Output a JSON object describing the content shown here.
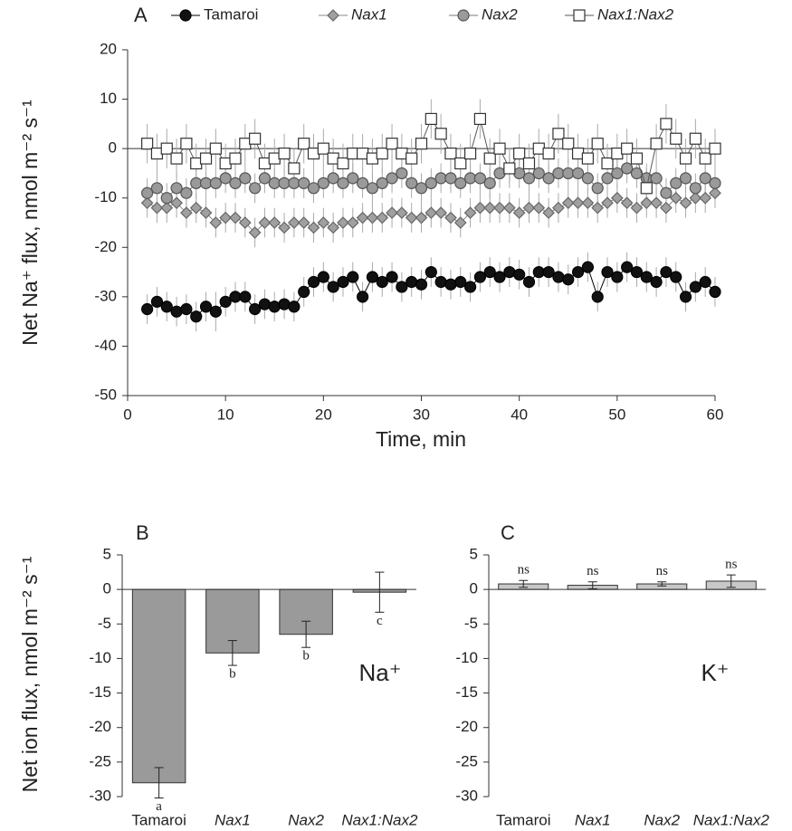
{
  "chart_data": [
    {
      "type": "line",
      "panel_label": "A",
      "xlabel": "Time, min",
      "ylabel": "Net Na⁺ flux, nmol m⁻² s⁻¹",
      "xlim": [
        0,
        60
      ],
      "xticks": [
        0,
        10,
        20,
        30,
        40,
        50,
        60
      ],
      "ylim": [
        -50,
        20
      ],
      "yticks": [
        20,
        10,
        0,
        -10,
        -20,
        -30,
        -40,
        -50
      ],
      "error_color": "#aaaaaa",
      "x": [
        2,
        3,
        4,
        5,
        6,
        7,
        8,
        9,
        10,
        11,
        12,
        13,
        14,
        15,
        16,
        17,
        18,
        19,
        20,
        21,
        22,
        23,
        24,
        25,
        26,
        27,
        28,
        29,
        30,
        31,
        32,
        33,
        34,
        35,
        36,
        37,
        38,
        39,
        40,
        41,
        42,
        43,
        44,
        45,
        46,
        47,
        48,
        49,
        50,
        51,
        52,
        53,
        54,
        55,
        56,
        57,
        58,
        59,
        60
      ],
      "series": [
        {
          "name": "Tamaroi",
          "italic": false,
          "marker": "circle",
          "color": "#111111",
          "stroke": "#000000",
          "line_color": "#000000",
          "values": [
            -32.5,
            -31,
            -32,
            -33,
            -32.5,
            -34,
            -32,
            -33,
            -31,
            -30,
            -30,
            -32.5,
            -31.5,
            -32,
            -31.5,
            -32,
            -29,
            -27,
            -26,
            -28,
            -27,
            -26,
            -30,
            -26,
            -27,
            -26,
            -28,
            -27,
            -27.5,
            -25,
            -27,
            -27.5,
            -27,
            -28,
            -26,
            -25,
            -26,
            -25,
            -25.5,
            -27,
            -25,
            -25,
            -26,
            -26.5,
            -25,
            -24,
            -30,
            -25,
            -26,
            -24,
            -25,
            -26,
            -27,
            -25,
            -26,
            -30,
            -28,
            -27,
            -29
          ],
          "errors": [
            3,
            3,
            3,
            3,
            3,
            3,
            3,
            4,
            3,
            3,
            3,
            3,
            3,
            3,
            3,
            3,
            3,
            3,
            3,
            3,
            3,
            3,
            3,
            3,
            3,
            3,
            3,
            3,
            3,
            3,
            3,
            3,
            3,
            3,
            3,
            3,
            3,
            3,
            3,
            3,
            3,
            3,
            3,
            3,
            3,
            3,
            3,
            3,
            3,
            3,
            3,
            3,
            3,
            3,
            3,
            3,
            3,
            3,
            3
          ]
        },
        {
          "name": "Nax1",
          "italic": true,
          "marker": "diamond",
          "color": "#a0a0a0",
          "stroke": "#666666",
          "line_color": "#888888",
          "values": [
            -11,
            -12,
            -12,
            -11,
            -13,
            -12,
            -13,
            -15,
            -14,
            -14,
            -15,
            -17,
            -15,
            -15,
            -16,
            -15,
            -15,
            -16,
            -15,
            -16,
            -15,
            -15,
            -14,
            -14,
            -14,
            -13,
            -13,
            -14,
            -14,
            -13,
            -13,
            -14,
            -15,
            -13,
            -12,
            -12,
            -12,
            -12,
            -13,
            -12,
            -12,
            -13,
            -12,
            -11,
            -11,
            -11,
            -12,
            -11,
            -10,
            -11,
            -12,
            -11,
            -11,
            -12,
            -10,
            -11,
            -10,
            -10,
            -9
          ],
          "errors": [
            3,
            3,
            3,
            3,
            3,
            3,
            3,
            3,
            3,
            3,
            3,
            3,
            3,
            3,
            3,
            3,
            3,
            3,
            3,
            3,
            3,
            3,
            3,
            3,
            3,
            3,
            3,
            3,
            3,
            3,
            3,
            3,
            3,
            3,
            3,
            3,
            3,
            3,
            3,
            3,
            3,
            3,
            3,
            3,
            3,
            3,
            3,
            3,
            3,
            3,
            3,
            3,
            3,
            3,
            3,
            3,
            3,
            3,
            3
          ]
        },
        {
          "name": "Nax2",
          "italic": true,
          "marker": "circle",
          "color": "#9a9a9a",
          "stroke": "#555555",
          "line_color": "#777777",
          "values": [
            -9,
            -8,
            -10,
            -8,
            -9,
            -7,
            -7,
            -7,
            -6,
            -7,
            -6,
            -8,
            -6,
            -7,
            -7,
            -7,
            -7,
            -8,
            -7,
            -6,
            -7,
            -6,
            -7,
            -8,
            -7,
            -6,
            -5,
            -7,
            -8,
            -7,
            -6,
            -6,
            -7,
            -6,
            -6,
            -7,
            -5,
            -4,
            -5,
            -6,
            -5,
            -6,
            -5,
            -5,
            -5,
            -6,
            -8,
            -6,
            -5,
            -4,
            -5,
            -6,
            -6,
            -9,
            -7,
            -6,
            -8,
            -6,
            -7
          ],
          "errors": [
            3,
            3,
            3,
            3,
            3,
            3,
            3,
            3,
            3,
            3,
            3,
            3,
            3,
            3,
            3,
            3,
            3,
            3,
            3,
            3,
            3,
            3,
            3,
            3,
            3,
            3,
            3,
            3,
            3,
            3,
            3,
            3,
            3,
            3,
            3,
            3,
            3,
            3,
            3,
            3,
            3,
            3,
            3,
            3,
            3,
            3,
            3,
            3,
            3,
            3,
            3,
            3,
            3,
            3,
            3,
            3,
            3,
            3,
            3
          ]
        },
        {
          "name": "Nax1:Nax2",
          "italic": true,
          "marker": "square",
          "color": "#ffffff",
          "stroke": "#333333",
          "line_color": "#555555",
          "values": [
            1,
            -1,
            0,
            -2,
            1,
            -3,
            -2,
            0,
            -3,
            -2,
            1,
            2,
            -3,
            -2,
            -1,
            -4,
            1,
            -1,
            0,
            -2,
            -3,
            -1,
            -1,
            -2,
            -1,
            1,
            -1,
            -2,
            1,
            6,
            3,
            -1,
            -3,
            -1,
            6,
            -2,
            0,
            -4,
            -1,
            -3,
            0,
            -1,
            3,
            1,
            -1,
            -2,
            1,
            -3,
            -1,
            0,
            -2,
            -8,
            1,
            5,
            2,
            -2,
            2,
            -2,
            0
          ],
          "errors": [
            4,
            4,
            4,
            4,
            4,
            4,
            4,
            4,
            4,
            4,
            4,
            4,
            4,
            4,
            4,
            4,
            4,
            4,
            4,
            4,
            4,
            4,
            4,
            4,
            4,
            4,
            4,
            4,
            4,
            4,
            4,
            4,
            4,
            4,
            4,
            4,
            4,
            4,
            4,
            4,
            4,
            4,
            4,
            4,
            4,
            4,
            4,
            4,
            4,
            4,
            4,
            4,
            4,
            4,
            4,
            4,
            4,
            4,
            4
          ]
        }
      ]
    },
    {
      "type": "bar",
      "panel_label": "B",
      "ylabel": "Net ion flux, nmol m⁻² s⁻¹",
      "ion": "Na⁺",
      "categories": [
        "Tamaroi",
        "Nax1",
        "Nax2",
        "Nax1:Nax2"
      ],
      "category_italic": [
        false,
        true,
        true,
        true
      ],
      "values": [
        -28,
        -9.2,
        -6.5,
        -0.4
      ],
      "errors": [
        2.2,
        1.8,
        1.9,
        2.9
      ],
      "annotations": [
        "a",
        "b",
        "b",
        "c"
      ],
      "color": "#9a9a9a",
      "ylim": [
        -30,
        5
      ],
      "yticks": [
        5,
        0,
        -5,
        -10,
        -15,
        -20,
        -25,
        -30
      ]
    },
    {
      "type": "bar",
      "panel_label": "C",
      "ion": "K⁺",
      "categories": [
        "Tamaroi",
        "Nax1",
        "Nax2",
        "Nax1:Nax2"
      ],
      "category_italic": [
        false,
        true,
        true,
        true
      ],
      "values": [
        0.8,
        0.6,
        0.8,
        1.2
      ],
      "errors": [
        0.5,
        0.5,
        0.3,
        0.9
      ],
      "annotations": [
        "ns",
        "ns",
        "ns",
        "ns"
      ],
      "color": "#c8c8c8",
      "ylim": [
        -30,
        5
      ],
      "yticks": [
        5,
        0,
        -5,
        -10,
        -15,
        -20,
        -25,
        -30
      ]
    }
  ]
}
